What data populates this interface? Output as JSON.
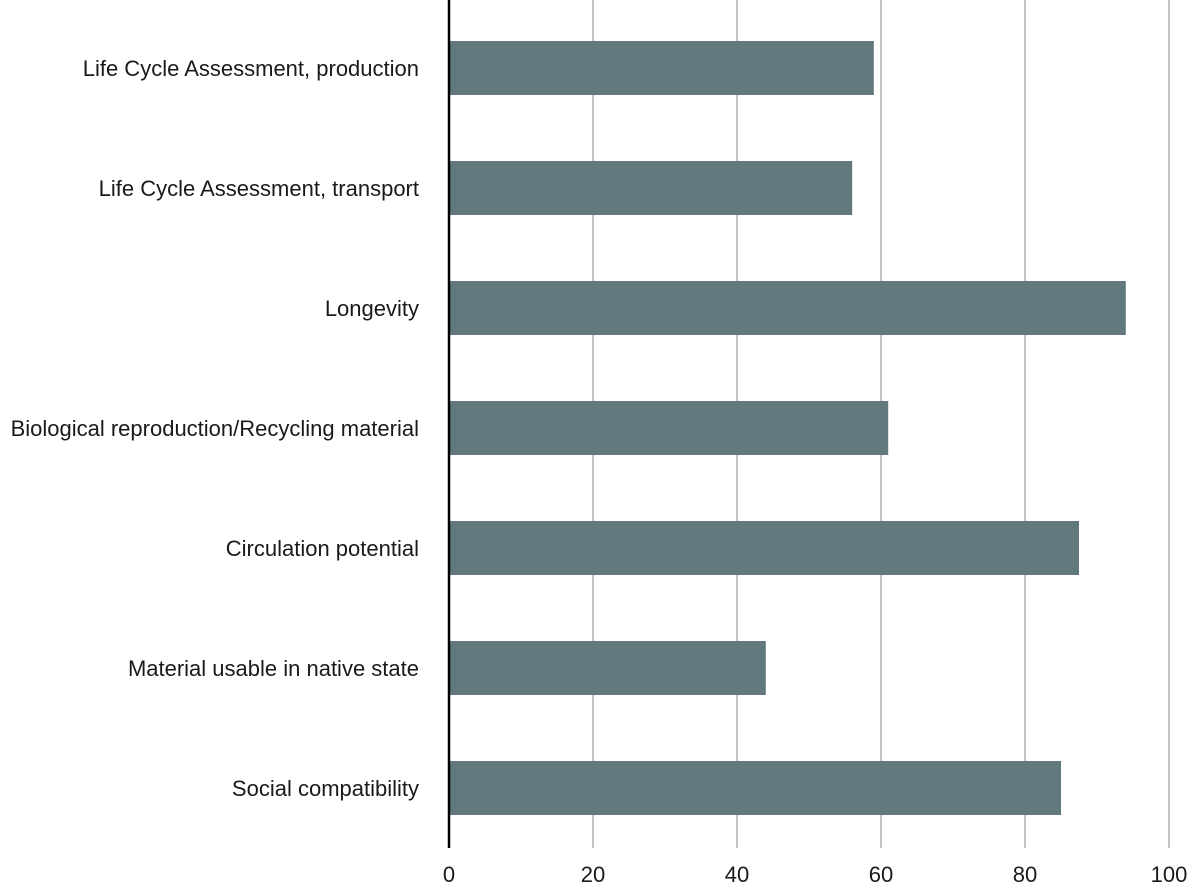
{
  "chart_data": {
    "type": "bar",
    "orientation": "horizontal",
    "title": "",
    "xlabel": "",
    "ylabel": "",
    "categories": [
      "Life Cycle Assessment, production",
      "Life Cycle Assessment, transport",
      "Longevity",
      "Biological reproduction/Recycling material",
      "Circulation potential",
      "Material usable in native state",
      "Social compatibility"
    ],
    "values": [
      59,
      56,
      94,
      61,
      87.5,
      44,
      85
    ],
    "xlim": [
      0,
      100
    ],
    "xticks": [
      0,
      20,
      40,
      60,
      80,
      100
    ],
    "xtick_labels": [
      "0",
      "20",
      "40",
      "60",
      "80",
      "100"
    ],
    "grid": "vertical",
    "legend": "none",
    "colors": {
      "bar": "#61797c",
      "grid": "#c4c4c4",
      "axis": "#000000",
      "text": "#1a1a1a"
    }
  }
}
